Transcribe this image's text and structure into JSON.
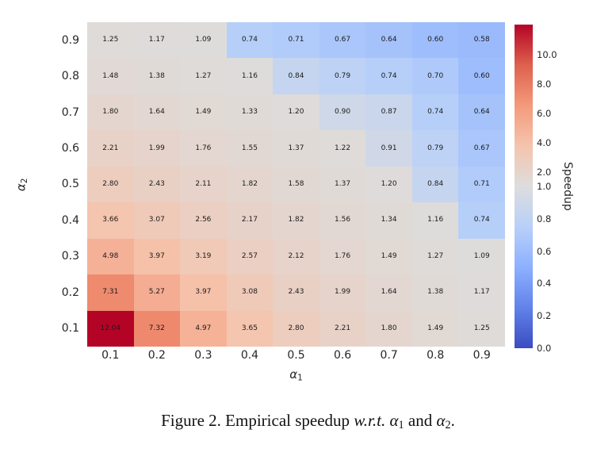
{
  "colors": {
    "background": "#ffffff",
    "tick_text": "#262626",
    "cell_text": "#1a1a1a",
    "colormap_anchors": [
      "#3B4CC0",
      "#6282EA",
      "#8DB0FE",
      "#B8D0F9",
      "#DDDDDD",
      "#F5C4AD",
      "#F49A7B",
      "#DE614D",
      "#B40426"
    ]
  },
  "chart_data": {
    "type": "heatmap",
    "xlabel": "α1",
    "ylabel": "α2",
    "xlabel_base": "α",
    "xlabel_sub": "1",
    "ylabel_base": "α",
    "ylabel_sub": "2",
    "x_categories": [
      "0.1",
      "0.2",
      "0.3",
      "0.4",
      "0.5",
      "0.6",
      "0.7",
      "0.8",
      "0.9"
    ],
    "y_categories": [
      "0.9",
      "0.8",
      "0.7",
      "0.6",
      "0.5",
      "0.4",
      "0.3",
      "0.2",
      "0.1"
    ],
    "values": [
      [
        "1.25",
        "1.17",
        "1.09",
        "0.74",
        "0.71",
        "0.67",
        "0.64",
        "0.60",
        "0.58"
      ],
      [
        "1.48",
        "1.38",
        "1.27",
        "1.16",
        "0.84",
        "0.79",
        "0.74",
        "0.70",
        "0.60"
      ],
      [
        "1.80",
        "1.64",
        "1.49",
        "1.33",
        "1.20",
        "0.90",
        "0.87",
        "0.74",
        "0.64"
      ],
      [
        "2.21",
        "1.99",
        "1.76",
        "1.55",
        "1.37",
        "1.22",
        "0.91",
        "0.79",
        "0.67"
      ],
      [
        "2.80",
        "2.43",
        "2.11",
        "1.82",
        "1.58",
        "1.37",
        "1.20",
        "0.84",
        "0.71"
      ],
      [
        "3.66",
        "3.07",
        "2.56",
        "2.17",
        "1.82",
        "1.56",
        "1.34",
        "1.16",
        "0.74"
      ],
      [
        "4.98",
        "3.97",
        "3.19",
        "2.57",
        "2.12",
        "1.76",
        "1.49",
        "1.27",
        "1.09"
      ],
      [
        "7.31",
        "5.27",
        "3.97",
        "3.08",
        "2.43",
        "1.99",
        "1.64",
        "1.38",
        "1.17"
      ],
      [
        "12.04",
        "7.32",
        "4.97",
        "3.65",
        "2.80",
        "2.21",
        "1.80",
        "1.49",
        "1.25"
      ]
    ],
    "colorbar": {
      "label": "Speedup",
      "tick_labels": [
        "10.0",
        "8.0",
        "6.0",
        "4.0",
        "2.0",
        "1.0",
        "0.8",
        "0.6",
        "0.4",
        "0.2",
        "0.0"
      ],
      "tick_values": [
        10.0,
        8.0,
        6.0,
        4.0,
        2.0,
        1.0,
        0.8,
        0.6,
        0.4,
        0.2,
        0.0
      ],
      "vmin": 0,
      "vcenter": 1,
      "vmax": 12.04,
      "colormap_name": "coolwarm",
      "position": "right"
    },
    "grid": false,
    "annotated": true
  },
  "caption": {
    "parts": [
      {
        "text": "Figure 2. Empirical speedup ",
        "style": "normal"
      },
      {
        "text": "w.r.t.",
        "style": "italic"
      },
      {
        "text": " ",
        "style": "normal"
      },
      {
        "text": "α",
        "style": "italic"
      },
      {
        "text": "1",
        "style": "sub"
      },
      {
        "text": " and ",
        "style": "normal"
      },
      {
        "text": "α",
        "style": "italic"
      },
      {
        "text": "2",
        "style": "sub"
      },
      {
        "text": ".",
        "style": "normal"
      }
    ]
  }
}
